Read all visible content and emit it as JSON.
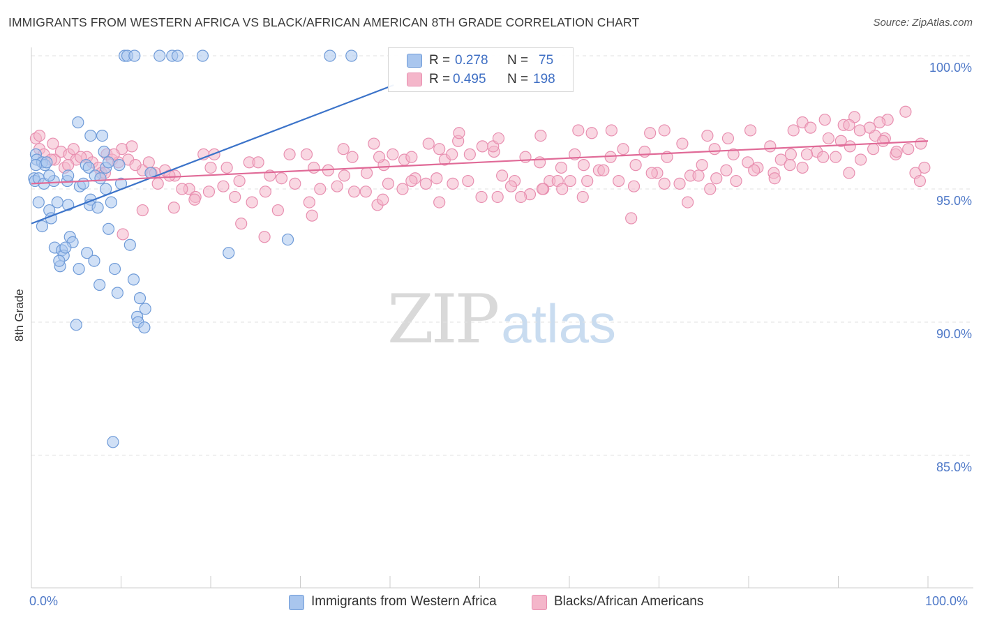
{
  "title": "IMMIGRANTS FROM WESTERN AFRICA VS BLACK/AFRICAN AMERICAN 8TH GRADE CORRELATION CHART",
  "source": "Source: ZipAtlas.com",
  "watermark": {
    "zip": "ZIP",
    "atlas": "atlas"
  },
  "stats": [
    {
      "r_label": "R =",
      "r_value": "0.278",
      "n_label": "N =",
      "n_value": "75",
      "color": "#a9c6ee"
    },
    {
      "r_label": "R =",
      "r_value": "0.495",
      "n_label": "N =",
      "n_value": "198",
      "color": "#f4b6ca"
    }
  ],
  "colors": {
    "blue_fill": "#a9c6ee",
    "blue_stroke": "#6f9bd8",
    "blue_line": "#3b73c9",
    "pink_fill": "#f4b6ca",
    "pink_stroke": "#e88fb0",
    "pink_line": "#e06a97",
    "tick_text": "#4f79c8",
    "grid": "#e2e2e2"
  },
  "chart_data": {
    "type": "scatter",
    "title": "IMMIGRANTS FROM WESTERN AFRICA VS BLACK/AFRICAN AMERICAN 8TH GRADE CORRELATION CHART",
    "xlabel": "",
    "ylabel": "8th Grade",
    "xlim": [
      0,
      100
    ],
    "ylim": [
      80.5,
      100.5
    ],
    "x_tick_labels": [
      "0.0%",
      "100.0%"
    ],
    "y_ticks": [
      85,
      90,
      95,
      100
    ],
    "y_tick_labels": [
      "85.0%",
      "90.0%",
      "95.0%",
      "100.0%"
    ],
    "grid": true,
    "legend_placement": "bottom-center",
    "series": [
      {
        "name": "Immigrants from Western Africa",
        "color": "#a9c6ee",
        "trend": {
          "x": [
            0,
            40.4
          ],
          "y": [
            93.7,
            98.9
          ]
        },
        "points": [
          [
            10.4,
            100
          ],
          [
            10.7,
            100
          ],
          [
            11.5,
            100
          ],
          [
            14.3,
            100
          ],
          [
            15.7,
            100
          ],
          [
            16.3,
            100
          ],
          [
            19.1,
            100
          ],
          [
            33.3,
            100
          ],
          [
            35.7,
            100
          ],
          [
            5.2,
            97.5
          ],
          [
            6.6,
            97.0
          ],
          [
            7.9,
            97.0
          ],
          [
            8.1,
            96.4
          ],
          [
            0.5,
            96.3
          ],
          [
            0.6,
            96.1
          ],
          [
            1.2,
            96.0
          ],
          [
            1.5,
            95.9
          ],
          [
            1.7,
            96.0
          ],
          [
            6.1,
            95.9
          ],
          [
            8.3,
            95.8
          ],
          [
            8.6,
            96.0
          ],
          [
            9.8,
            95.9
          ],
          [
            6.4,
            95.8
          ],
          [
            13.3,
            95.6
          ],
          [
            0.3,
            95.4
          ],
          [
            0.4,
            95.3
          ],
          [
            0.8,
            95.4
          ],
          [
            1.4,
            95.2
          ],
          [
            2.5,
            95.3
          ],
          [
            4.0,
            95.3
          ],
          [
            4.1,
            95.5
          ],
          [
            5.4,
            95.1
          ],
          [
            5.8,
            95.2
          ],
          [
            7.1,
            95.5
          ],
          [
            7.7,
            95.4
          ],
          [
            8.3,
            95.0
          ],
          [
            10.0,
            95.2
          ],
          [
            0.8,
            94.5
          ],
          [
            2.9,
            94.5
          ],
          [
            4.1,
            94.4
          ],
          [
            6.6,
            94.6
          ],
          [
            6.5,
            94.4
          ],
          [
            7.4,
            94.3
          ],
          [
            8.9,
            94.5
          ],
          [
            2.0,
            94.2
          ],
          [
            2.2,
            93.9
          ],
          [
            1.2,
            93.6
          ],
          [
            8.6,
            93.5
          ],
          [
            4.3,
            93.2
          ],
          [
            4.6,
            93.0
          ],
          [
            11.0,
            92.9
          ],
          [
            22.0,
            92.6
          ],
          [
            28.6,
            93.1
          ],
          [
            2.6,
            92.8
          ],
          [
            3.4,
            92.7
          ],
          [
            3.6,
            92.5
          ],
          [
            3.8,
            92.8
          ],
          [
            6.2,
            92.6
          ],
          [
            3.2,
            92.1
          ],
          [
            3.1,
            92.3
          ],
          [
            5.3,
            92.0
          ],
          [
            7.0,
            92.3
          ],
          [
            9.3,
            92.0
          ],
          [
            11.4,
            91.6
          ],
          [
            7.6,
            91.4
          ],
          [
            9.6,
            91.1
          ],
          [
            12.1,
            90.9
          ],
          [
            12.7,
            90.5
          ],
          [
            11.8,
            90.2
          ],
          [
            11.9,
            90.0
          ],
          [
            12.6,
            89.8
          ],
          [
            5.0,
            89.9
          ],
          [
            9.1,
            85.5
          ],
          [
            0.5,
            95.9
          ],
          [
            2.0,
            95.5
          ]
        ]
      },
      {
        "name": "Blacks/African Americans",
        "color": "#f4b6ca",
        "trend": {
          "x": [
            0,
            100
          ],
          "y": [
            95.2,
            96.8
          ]
        },
        "points": [
          [
            0.5,
            96.9
          ],
          [
            0.9,
            96.5
          ],
          [
            1.4,
            96.3
          ],
          [
            2.4,
            96.7
          ],
          [
            2.6,
            96.1
          ],
          [
            3.3,
            96.4
          ],
          [
            4.2,
            96.3
          ],
          [
            4.7,
            96.5
          ],
          [
            5.0,
            96.1
          ],
          [
            6.2,
            96.2
          ],
          [
            6.8,
            96.0
          ],
          [
            7.5,
            95.8
          ],
          [
            8.4,
            96.3
          ],
          [
            9.0,
            96.1
          ],
          [
            9.7,
            96.0
          ],
          [
            10.1,
            96.5
          ],
          [
            10.8,
            96.1
          ],
          [
            11.2,
            96.6
          ],
          [
            12.4,
            95.7
          ],
          [
            13.1,
            96.0
          ],
          [
            13.4,
            95.6
          ],
          [
            14.1,
            95.2
          ],
          [
            14.9,
            95.7
          ],
          [
            16.0,
            95.5
          ],
          [
            17.6,
            95.0
          ],
          [
            19.2,
            96.3
          ],
          [
            20.0,
            95.8
          ],
          [
            21.8,
            95.8
          ],
          [
            23.2,
            95.3
          ],
          [
            24.3,
            96.0
          ],
          [
            25.3,
            96.0
          ],
          [
            26.6,
            95.5
          ],
          [
            27.9,
            95.4
          ],
          [
            28.8,
            96.3
          ],
          [
            30.7,
            96.3
          ],
          [
            31.5,
            95.8
          ],
          [
            33.1,
            95.7
          ],
          [
            34.9,
            95.5
          ],
          [
            35.8,
            96.2
          ],
          [
            37.4,
            95.6
          ],
          [
            39.3,
            95.9
          ],
          [
            40.3,
            96.3
          ],
          [
            41.6,
            96.1
          ],
          [
            42.8,
            95.4
          ],
          [
            44.3,
            96.7
          ],
          [
            45.5,
            96.5
          ],
          [
            46.1,
            96.1
          ],
          [
            47.6,
            96.8
          ],
          [
            48.9,
            96.3
          ],
          [
            50.3,
            96.6
          ],
          [
            51.6,
            96.4
          ],
          [
            52.5,
            95.5
          ],
          [
            53.9,
            95.3
          ],
          [
            55.1,
            96.2
          ],
          [
            56.7,
            96.0
          ],
          [
            57.8,
            95.3
          ],
          [
            59.1,
            95.8
          ],
          [
            60.6,
            96.3
          ],
          [
            61.6,
            95.9
          ],
          [
            63.3,
            95.7
          ],
          [
            64.6,
            96.2
          ],
          [
            66.0,
            96.5
          ],
          [
            67.4,
            95.9
          ],
          [
            68.4,
            96.4
          ],
          [
            69.8,
            95.6
          ],
          [
            70.9,
            96.2
          ],
          [
            72.6,
            96.7
          ],
          [
            73.5,
            95.5
          ],
          [
            74.8,
            95.9
          ],
          [
            76.2,
            96.5
          ],
          [
            77.5,
            95.7
          ],
          [
            78.3,
            96.3
          ],
          [
            79.9,
            96.0
          ],
          [
            81.0,
            95.8
          ],
          [
            82.4,
            96.6
          ],
          [
            83.6,
            96.1
          ],
          [
            84.7,
            96.3
          ],
          [
            86.0,
            95.8
          ],
          [
            87.6,
            96.4
          ],
          [
            88.9,
            96.9
          ],
          [
            89.7,
            96.2
          ],
          [
            91.3,
            96.6
          ],
          [
            92.5,
            96.1
          ],
          [
            93.9,
            96.5
          ],
          [
            95.2,
            96.9
          ],
          [
            96.4,
            96.3
          ],
          [
            97.8,
            96.5
          ],
          [
            99.2,
            96.7
          ],
          [
            99.6,
            95.8
          ],
          [
            0.9,
            97.0
          ],
          [
            2.2,
            96.1
          ],
          [
            3.7,
            95.8
          ],
          [
            5.5,
            96.2
          ],
          [
            7.8,
            95.6
          ],
          [
            9.2,
            96.3
          ],
          [
            11.6,
            95.9
          ],
          [
            13.8,
            95.6
          ],
          [
            15.4,
            95.5
          ],
          [
            16.8,
            95.0
          ],
          [
            18.3,
            94.7
          ],
          [
            19.8,
            94.9
          ],
          [
            21.4,
            95.1
          ],
          [
            22.7,
            94.7
          ],
          [
            24.6,
            94.5
          ],
          [
            26.1,
            94.9
          ],
          [
            27.5,
            94.2
          ],
          [
            29.4,
            95.2
          ],
          [
            31.0,
            94.5
          ],
          [
            32.2,
            95.0
          ],
          [
            34.1,
            95.1
          ],
          [
            36.0,
            94.9
          ],
          [
            37.3,
            94.9
          ],
          [
            38.6,
            94.4
          ],
          [
            39.8,
            95.2
          ],
          [
            41.4,
            95.0
          ],
          [
            42.4,
            95.3
          ],
          [
            44.0,
            95.2
          ],
          [
            45.2,
            95.4
          ],
          [
            47.0,
            95.2
          ],
          [
            48.7,
            95.3
          ],
          [
            50.2,
            94.7
          ],
          [
            52.0,
            94.7
          ],
          [
            53.5,
            95.1
          ],
          [
            55.6,
            94.8
          ],
          [
            57.1,
            95.0
          ],
          [
            58.7,
            95.3
          ],
          [
            60.1,
            95.3
          ],
          [
            62.0,
            95.3
          ],
          [
            63.8,
            95.7
          ],
          [
            65.5,
            95.3
          ],
          [
            67.2,
            95.1
          ],
          [
            69.2,
            95.6
          ],
          [
            70.6,
            95.2
          ],
          [
            72.3,
            95.2
          ],
          [
            74.4,
            95.5
          ],
          [
            76.4,
            95.4
          ],
          [
            78.6,
            95.3
          ],
          [
            80.6,
            95.7
          ],
          [
            82.8,
            95.6
          ],
          [
            84.6,
            95.9
          ],
          [
            86.5,
            96.3
          ],
          [
            88.3,
            96.2
          ],
          [
            90.3,
            96.8
          ],
          [
            92.4,
            97.2
          ],
          [
            94.1,
            97.0
          ],
          [
            96.5,
            96.4
          ],
          [
            98.6,
            95.6
          ],
          [
            18.2,
            94.6
          ],
          [
            15.9,
            94.3
          ],
          [
            12.4,
            94.2
          ],
          [
            10.2,
            93.3
          ],
          [
            23.4,
            93.7
          ],
          [
            26.0,
            93.2
          ],
          [
            31.3,
            94.0
          ],
          [
            39.2,
            94.6
          ],
          [
            45.5,
            94.5
          ],
          [
            54.6,
            94.7
          ],
          [
            57.0,
            95.0
          ],
          [
            61.5,
            94.7
          ],
          [
            66.9,
            93.9
          ],
          [
            73.2,
            94.5
          ],
          [
            82.9,
            95.4
          ],
          [
            91.2,
            95.6
          ],
          [
            99.1,
            95.3
          ],
          [
            51.5,
            96.6
          ],
          [
            46.9,
            96.3
          ],
          [
            42.4,
            96.2
          ],
          [
            38.2,
            96.7
          ],
          [
            34.8,
            96.5
          ],
          [
            47.7,
            97.1
          ],
          [
            52.1,
            96.9
          ],
          [
            56.8,
            97.0
          ],
          [
            62.5,
            97.1
          ],
          [
            69.0,
            97.1
          ],
          [
            75.4,
            97.0
          ],
          [
            80.2,
            97.2
          ],
          [
            85.0,
            97.2
          ],
          [
            90.6,
            97.4
          ],
          [
            95.5,
            97.6
          ],
          [
            97.5,
            97.9
          ],
          [
            86.0,
            97.5
          ],
          [
            88.5,
            97.6
          ],
          [
            91.8,
            97.7
          ],
          [
            61.0,
            97.2
          ],
          [
            64.7,
            97.2
          ],
          [
            70.6,
            97.2
          ],
          [
            77.7,
            96.9
          ],
          [
            86.9,
            97.3
          ],
          [
            91.2,
            97.4
          ],
          [
            94.6,
            97.5
          ],
          [
            95.0,
            96.8
          ],
          [
            75.7,
            95.0
          ],
          [
            8.2,
            95.6
          ],
          [
            4.1,
            95.9
          ],
          [
            20.4,
            96.3
          ],
          [
            38.8,
            96.2
          ],
          [
            59.2,
            95.0
          ],
          [
            93.5,
            97.3
          ]
        ]
      }
    ]
  }
}
